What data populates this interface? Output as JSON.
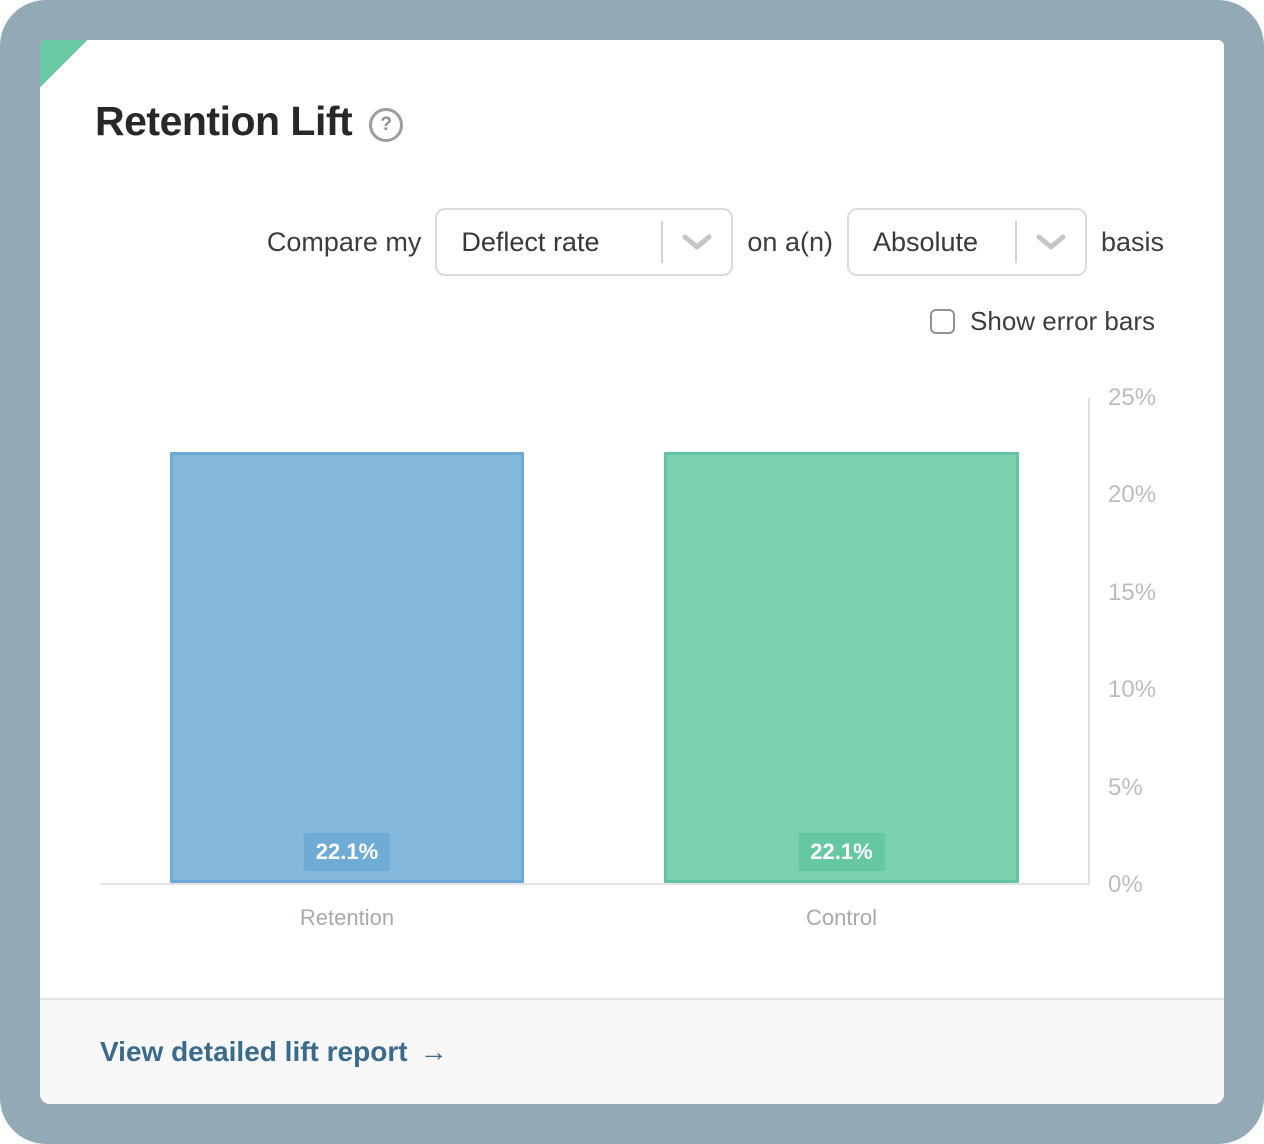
{
  "card": {
    "title": "Retention Lift",
    "help_icon": "?",
    "controls": {
      "prefix": "Compare my",
      "metric_select": {
        "value": "Deflect rate"
      },
      "middle": "on a(n)",
      "basis_select": {
        "value": "Absolute"
      },
      "suffix": "basis",
      "error_bars": {
        "label": "Show error bars",
        "checked": false
      }
    },
    "footer": {
      "link_label": "View detailed lift report",
      "arrow": "→"
    }
  },
  "chart_data": {
    "type": "bar",
    "categories": [
      "Retention",
      "Control"
    ],
    "values": [
      22.1,
      22.1
    ],
    "value_labels": [
      "22.1%",
      "22.1%"
    ],
    "bar_colors": [
      "#85b8dd",
      "#7bd0ae"
    ],
    "bar_border_colors": [
      "#6fa9d6",
      "#62c4a0"
    ],
    "badge_colors": [
      "#6eacd6",
      "#66c8a2"
    ],
    "title": "Retention Lift",
    "xlabel": "",
    "ylabel": "",
    "ylim": [
      0,
      25
    ],
    "ytick_values": [
      0,
      5,
      10,
      15,
      20,
      25
    ],
    "ytick_labels": [
      "0%",
      "5%",
      "10%",
      "15%",
      "20%",
      "25%"
    ],
    "y_axis_position": "right",
    "grid": false,
    "legend": null
  },
  "colors": {
    "page_background": "#93a9b6",
    "card_background": "#ffffff",
    "accent_triangle": "#68c9a2",
    "link": "#3a6a8c"
  }
}
